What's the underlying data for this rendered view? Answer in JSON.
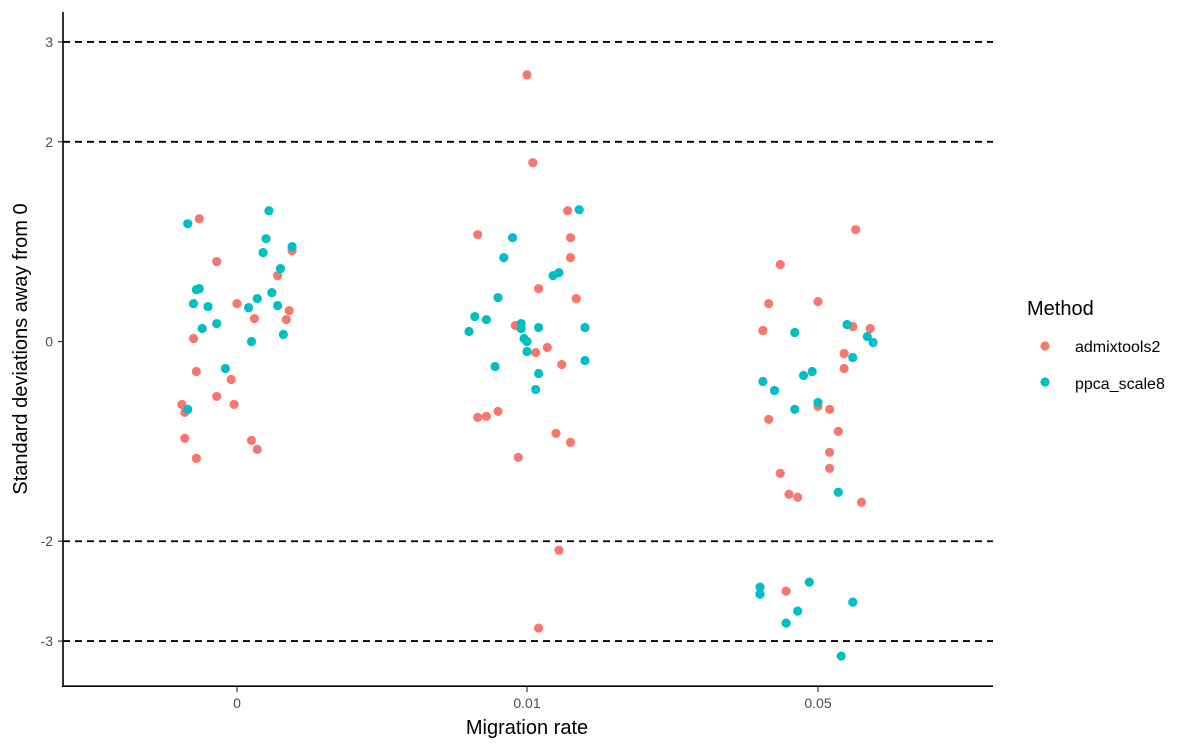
{
  "chart_data": {
    "type": "scatter",
    "title": "",
    "xlabel": "Migration rate",
    "ylabel": "Standard deviations away from 0",
    "categories": [
      "0",
      "0.01",
      "0.05"
    ],
    "ylim": [
      -3.45,
      3.3
    ],
    "yticks": [
      -3,
      -2,
      0,
      2,
      3
    ],
    "ytick_labels": [
      "-3",
      "-2",
      "0",
      "2",
      "3"
    ],
    "reference_lines": [
      -3,
      -2,
      2,
      3
    ],
    "grid": false,
    "legend": {
      "title": "Method",
      "placement": "right"
    },
    "series": [
      {
        "name": "admixtools2",
        "color": "#F8766D",
        "points": [
          {
            "category": "0",
            "jitter": -0.19,
            "y": -0.63
          },
          {
            "category": "0",
            "jitter": -0.18,
            "y": -0.71
          },
          {
            "category": "0",
            "jitter": -0.18,
            "y": -0.97
          },
          {
            "category": "0",
            "jitter": -0.15,
            "y": 0.03
          },
          {
            "category": "0",
            "jitter": -0.14,
            "y": -0.3
          },
          {
            "category": "0",
            "jitter": -0.14,
            "y": -1.17
          },
          {
            "category": "0",
            "jitter": -0.13,
            "y": 1.23
          },
          {
            "category": "0",
            "jitter": -0.07,
            "y": 0.8
          },
          {
            "category": "0",
            "jitter": -0.07,
            "y": -0.55
          },
          {
            "category": "0",
            "jitter": -0.02,
            "y": -0.38
          },
          {
            "category": "0",
            "jitter": -0.01,
            "y": -0.63
          },
          {
            "category": "0",
            "jitter": 0.0,
            "y": 0.38
          },
          {
            "category": "0",
            "jitter": 0.05,
            "y": -0.99
          },
          {
            "category": "0",
            "jitter": 0.06,
            "y": 0.23
          },
          {
            "category": "0",
            "jitter": 0.07,
            "y": -1.08
          },
          {
            "category": "0",
            "jitter": 0.14,
            "y": 0.66
          },
          {
            "category": "0",
            "jitter": 0.17,
            "y": 0.22
          },
          {
            "category": "0",
            "jitter": 0.18,
            "y": 0.31
          },
          {
            "category": "0",
            "jitter": 0.19,
            "y": 0.91
          },
          {
            "category": "0.01",
            "jitter": -0.17,
            "y": 1.07
          },
          {
            "category": "0.01",
            "jitter": -0.17,
            "y": -0.76
          },
          {
            "category": "0.01",
            "jitter": -0.14,
            "y": -0.75
          },
          {
            "category": "0.01",
            "jitter": -0.1,
            "y": -0.7
          },
          {
            "category": "0.01",
            "jitter": -0.04,
            "y": 0.16
          },
          {
            "category": "0.01",
            "jitter": -0.03,
            "y": -1.16
          },
          {
            "category": "0.01",
            "jitter": 0.0,
            "y": 2.67
          },
          {
            "category": "0.01",
            "jitter": 0.02,
            "y": 1.79
          },
          {
            "category": "0.01",
            "jitter": 0.03,
            "y": -0.11
          },
          {
            "category": "0.01",
            "jitter": 0.04,
            "y": 0.53
          },
          {
            "category": "0.01",
            "jitter": 0.04,
            "y": -2.87
          },
          {
            "category": "0.01",
            "jitter": 0.07,
            "y": -0.06
          },
          {
            "category": "0.01",
            "jitter": 0.1,
            "y": -0.92
          },
          {
            "category": "0.01",
            "jitter": 0.11,
            "y": -2.09
          },
          {
            "category": "0.01",
            "jitter": 0.12,
            "y": -0.23
          },
          {
            "category": "0.01",
            "jitter": 0.14,
            "y": 1.31
          },
          {
            "category": "0.01",
            "jitter": 0.15,
            "y": 1.04
          },
          {
            "category": "0.01",
            "jitter": 0.15,
            "y": 0.84
          },
          {
            "category": "0.01",
            "jitter": 0.15,
            "y": -1.01
          },
          {
            "category": "0.01",
            "jitter": 0.17,
            "y": 0.43
          },
          {
            "category": "0.05",
            "jitter": -0.19,
            "y": 0.11
          },
          {
            "category": "0.05",
            "jitter": -0.17,
            "y": 0.38
          },
          {
            "category": "0.05",
            "jitter": -0.17,
            "y": -0.78
          },
          {
            "category": "0.05",
            "jitter": -0.13,
            "y": 0.77
          },
          {
            "category": "0.05",
            "jitter": -0.13,
            "y": -1.32
          },
          {
            "category": "0.05",
            "jitter": -0.1,
            "y": -1.53
          },
          {
            "category": "0.05",
            "jitter": -0.11,
            "y": -2.5
          },
          {
            "category": "0.05",
            "jitter": -0.07,
            "y": -1.56
          },
          {
            "category": "0.05",
            "jitter": 0.0,
            "y": 0.4
          },
          {
            "category": "0.05",
            "jitter": 0.0,
            "y": -0.65
          },
          {
            "category": "0.05",
            "jitter": 0.04,
            "y": -0.68
          },
          {
            "category": "0.05",
            "jitter": 0.04,
            "y": -1.11
          },
          {
            "category": "0.05",
            "jitter": 0.04,
            "y": -1.27
          },
          {
            "category": "0.05",
            "jitter": 0.07,
            "y": -0.9
          },
          {
            "category": "0.05",
            "jitter": 0.09,
            "y": -0.12
          },
          {
            "category": "0.05",
            "jitter": 0.09,
            "y": -0.27
          },
          {
            "category": "0.05",
            "jitter": 0.12,
            "y": 0.15
          },
          {
            "category": "0.05",
            "jitter": 0.13,
            "y": 1.12
          },
          {
            "category": "0.05",
            "jitter": 0.15,
            "y": -1.61
          },
          {
            "category": "0.05",
            "jitter": 0.18,
            "y": 0.13
          }
        ]
      },
      {
        "name": "ppca_scale8",
        "color": "#00BFC4",
        "points": [
          {
            "category": "0",
            "jitter": -0.17,
            "y": -0.68
          },
          {
            "category": "0",
            "jitter": -0.17,
            "y": 1.18
          },
          {
            "category": "0",
            "jitter": -0.15,
            "y": 0.38
          },
          {
            "category": "0",
            "jitter": -0.14,
            "y": 0.52
          },
          {
            "category": "0",
            "jitter": -0.13,
            "y": 0.53
          },
          {
            "category": "0",
            "jitter": -0.12,
            "y": 0.13
          },
          {
            "category": "0",
            "jitter": -0.1,
            "y": 0.35
          },
          {
            "category": "0",
            "jitter": -0.07,
            "y": 0.18
          },
          {
            "category": "0",
            "jitter": -0.04,
            "y": -0.27
          },
          {
            "category": "0",
            "jitter": 0.04,
            "y": 0.34
          },
          {
            "category": "0",
            "jitter": 0.05,
            "y": 0.0
          },
          {
            "category": "0",
            "jitter": 0.07,
            "y": 0.43
          },
          {
            "category": "0",
            "jitter": 0.09,
            "y": 0.89
          },
          {
            "category": "0",
            "jitter": 0.1,
            "y": 1.03
          },
          {
            "category": "0",
            "jitter": 0.11,
            "y": 1.31
          },
          {
            "category": "0",
            "jitter": 0.12,
            "y": 0.49
          },
          {
            "category": "0",
            "jitter": 0.14,
            "y": 0.36
          },
          {
            "category": "0",
            "jitter": 0.15,
            "y": 0.73
          },
          {
            "category": "0",
            "jitter": 0.16,
            "y": 0.07
          },
          {
            "category": "0",
            "jitter": 0.19,
            "y": 0.95
          },
          {
            "category": "0.01",
            "jitter": -0.2,
            "y": 0.1
          },
          {
            "category": "0.01",
            "jitter": -0.18,
            "y": 0.25
          },
          {
            "category": "0.01",
            "jitter": -0.14,
            "y": 0.22
          },
          {
            "category": "0.01",
            "jitter": -0.11,
            "y": -0.25
          },
          {
            "category": "0.01",
            "jitter": -0.1,
            "y": 0.44
          },
          {
            "category": "0.01",
            "jitter": -0.08,
            "y": 0.84
          },
          {
            "category": "0.01",
            "jitter": -0.05,
            "y": 1.04
          },
          {
            "category": "0.01",
            "jitter": -0.02,
            "y": 0.13
          },
          {
            "category": "0.01",
            "jitter": -0.02,
            "y": 0.18
          },
          {
            "category": "0.01",
            "jitter": -0.01,
            "y": 0.03
          },
          {
            "category": "0.01",
            "jitter": 0.0,
            "y": 0.0
          },
          {
            "category": "0.01",
            "jitter": 0.0,
            "y": -0.1
          },
          {
            "category": "0.01",
            "jitter": 0.03,
            "y": -0.48
          },
          {
            "category": "0.01",
            "jitter": 0.04,
            "y": 0.14
          },
          {
            "category": "0.01",
            "jitter": 0.04,
            "y": -0.32
          },
          {
            "category": "0.01",
            "jitter": 0.09,
            "y": 0.66
          },
          {
            "category": "0.01",
            "jitter": 0.11,
            "y": 0.69
          },
          {
            "category": "0.01",
            "jitter": 0.18,
            "y": 1.32
          },
          {
            "category": "0.01",
            "jitter": 0.2,
            "y": 0.14
          },
          {
            "category": "0.01",
            "jitter": 0.2,
            "y": -0.19
          },
          {
            "category": "0.05",
            "jitter": -0.2,
            "y": -2.46
          },
          {
            "category": "0.05",
            "jitter": -0.2,
            "y": -2.53
          },
          {
            "category": "0.05",
            "jitter": -0.19,
            "y": -0.4
          },
          {
            "category": "0.05",
            "jitter": -0.15,
            "y": -0.49
          },
          {
            "category": "0.05",
            "jitter": -0.11,
            "y": -2.82
          },
          {
            "category": "0.05",
            "jitter": -0.08,
            "y": -0.68
          },
          {
            "category": "0.05",
            "jitter": -0.08,
            "y": 0.09
          },
          {
            "category": "0.05",
            "jitter": -0.07,
            "y": -2.7
          },
          {
            "category": "0.05",
            "jitter": -0.05,
            "y": -0.34
          },
          {
            "category": "0.05",
            "jitter": -0.03,
            "y": -2.41
          },
          {
            "category": "0.05",
            "jitter": -0.02,
            "y": -0.3
          },
          {
            "category": "0.05",
            "jitter": 0.0,
            "y": -0.61
          },
          {
            "category": "0.05",
            "jitter": 0.07,
            "y": -1.51
          },
          {
            "category": "0.05",
            "jitter": 0.08,
            "y": -3.15
          },
          {
            "category": "0.05",
            "jitter": 0.1,
            "y": 0.17
          },
          {
            "category": "0.05",
            "jitter": 0.12,
            "y": -2.61
          },
          {
            "category": "0.05",
            "jitter": 0.12,
            "y": -0.16
          },
          {
            "category": "0.05",
            "jitter": 0.17,
            "y": 0.05
          },
          {
            "category": "0.05",
            "jitter": 0.19,
            "y": -0.01
          }
        ]
      }
    ]
  }
}
